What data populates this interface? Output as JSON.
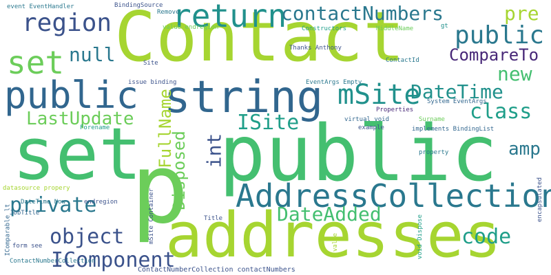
{
  "colors": {
    "background": "#ffffff",
    "lime": "#a6d531",
    "green": "#44bf70",
    "mid_green": "#6ccd5a",
    "teal": "#21918c",
    "blue_teal": "#2a788e",
    "slate": "#31668e",
    "indigo": "#3b528b",
    "purple": "#482878",
    "cyan": "#1f9e89"
  },
  "words": {
    "contact": "Contact",
    "public_big": "public",
    "set_big": "set",
    "p": "p",
    "addresses": "addresses",
    "string": "string",
    "public_left": "public",
    "return": "return",
    "contactNumbers": "contactNumbers",
    "region": "region",
    "public_right": "public",
    "set_left": "set",
    "null": "null",
    "pre": "pre",
    "compareTo": "CompareTo",
    "mSite": "mSite",
    "dateTime": "DateTime",
    "new": "new",
    "class": "class",
    "lastUpdate": "LastUpdate",
    "iSite": "ISite",
    "fullName": "FullName",
    "disposed": "Disposed",
    "int": "int",
    "amp": "amp",
    "addressCollection": "AddressCollection",
    "private": "private",
    "dateAdded": "DateAdded",
    "code": "code",
    "object": "object",
    "iComponent": "IComponent",
    "event_handler": "event EventHandler",
    "binding_source": "BindingSource",
    "remove": "Remove",
    "value_endregion": "value endregion",
    "constructors": "Constructors",
    "middlename": "MiddleName",
    "thanks": "Thanks Anthony",
    "site": "Site",
    "contactId": "ContactId",
    "issue_binding": "issue binding",
    "eventargs_empty": "EventArgs Empty",
    "gt": "gt",
    "system_eventargs": "System EventArgs",
    "properties": "Properties",
    "virtual_void": "virtual void",
    "surname": "Surname",
    "forename": "Forename",
    "example": "example",
    "implements": "implements BindingList",
    "property": "property",
    "datasource": "datasource propery",
    "msite_container": "mSite Container",
    "datetime_now": "DateTime Now",
    "endregion": "endregion",
    "jobtitle": "JobTitle",
    "title": "Title",
    "icomparable": "IComparable lt",
    "form_see": "form see",
    "value_small": "value",
    "void_dispose": "void Dispose",
    "encapsulated": "encapsulated",
    "contactNumberCollection": "ContactNumberCollection",
    "contactNumberCollection_line": "ContactNumberCollection contactNumbers"
  }
}
